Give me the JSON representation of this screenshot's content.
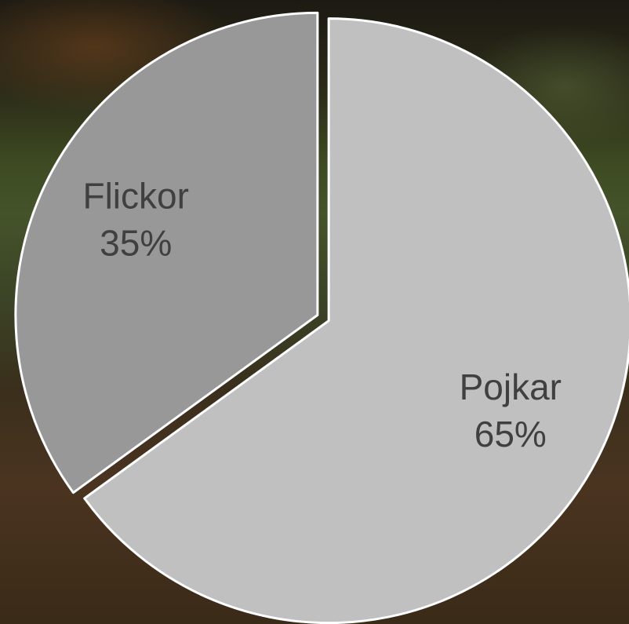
{
  "chart_data": {
    "type": "pie",
    "categories": [
      "Pojkar",
      "Flickor"
    ],
    "values": [
      65,
      35
    ],
    "value_labels": [
      "65%",
      "35%"
    ],
    "colors": [
      "#c0c0c0",
      "#989898"
    ]
  }
}
